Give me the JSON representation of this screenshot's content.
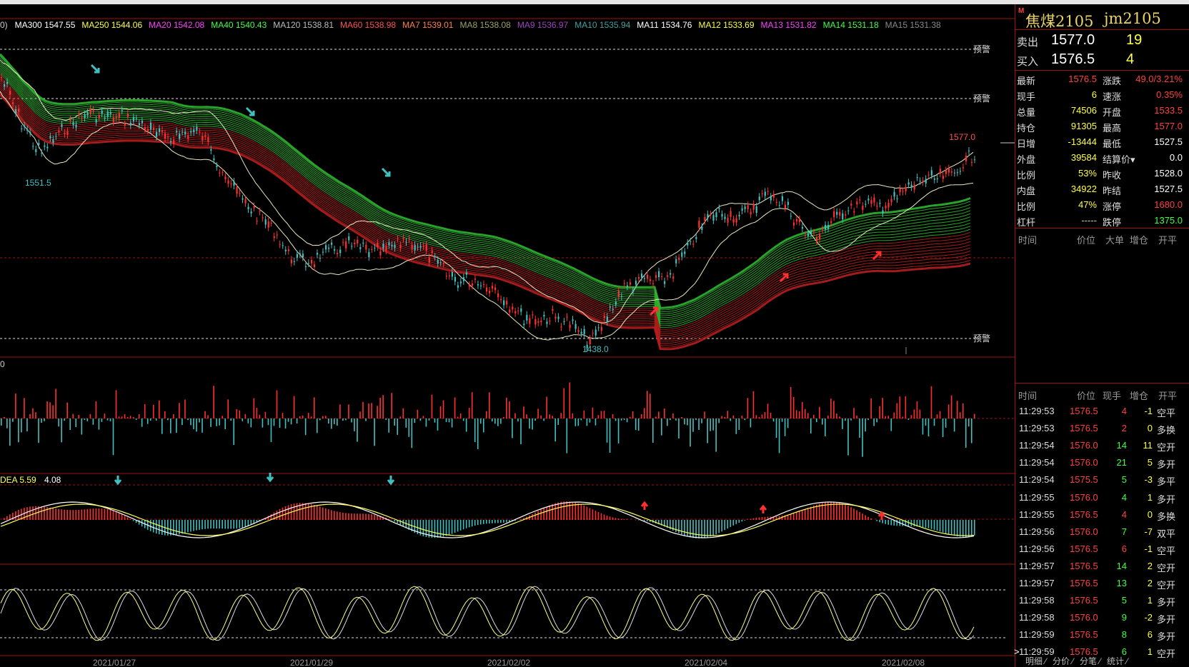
{
  "ma_legend": [
    {
      "label": "MA300 1547.55",
      "color": "#ffffff"
    },
    {
      "label": "MA250 1544.06",
      "color": "#ffff40"
    },
    {
      "label": "MA20 1542.08",
      "color": "#ff40ff"
    },
    {
      "label": "MA40 1540.43",
      "color": "#40ff40"
    },
    {
      "label": "MA120 1538.81",
      "color": "#bbbbbb"
    },
    {
      "label": "MA60 1538.98",
      "color": "#ff5050"
    },
    {
      "label": "MA7 1539.01",
      "color": "#ff8040"
    },
    {
      "label": "MA8 1538.08",
      "color": "#a0a060"
    },
    {
      "label": "MA9 1536.97",
      "color": "#a040c0"
    },
    {
      "label": "MA10 1535.94",
      "color": "#40a0a0"
    },
    {
      "label": "MA11 1534.76",
      "color": "#ffffff"
    },
    {
      "label": "MA12 1533.69",
      "color": "#ffff40"
    },
    {
      "label": "MA13 1531.82",
      "color": "#ff40ff"
    },
    {
      "label": "MA14 1531.18",
      "color": "#40ff40"
    },
    {
      "label": "MA15 1531.38",
      "color": "#888888"
    }
  ],
  "chart": {
    "legend_prefix": "0)",
    "warn_label": "预警",
    "high_label": "1577.0",
    "low_label": "1438.0",
    "left_label": "1551.5",
    "vol_axis_label": "0",
    "macd_label": "DEA 5.59",
    "macd_value": "4.08",
    "dates": [
      "2021/01/27",
      "2021/01/29",
      "2021/02/02",
      "2021/02/04",
      "2021/02/08"
    ]
  },
  "panel": {
    "name": "焦煤2105",
    "code": "jm2105",
    "m_badge": "M",
    "sell": {
      "label": "卖出",
      "price": "1577.0",
      "vol": "19"
    },
    "buy": {
      "label": "买入",
      "price": "1576.5",
      "vol": "4"
    },
    "stats_left": [
      {
        "label": "最新",
        "value": "1576.5",
        "color": "#ff4040"
      },
      {
        "label": "现手",
        "value": "6",
        "color": "#ffff40"
      },
      {
        "label": "总量",
        "value": "74506",
        "color": "#ffff40"
      },
      {
        "label": "持仓",
        "value": "91305",
        "color": "#ffff40"
      },
      {
        "label": "日增",
        "value": "-13444",
        "color": "#ffff40"
      },
      {
        "label": "外盘",
        "value": "39584",
        "color": "#ffff40"
      },
      {
        "label": "比例",
        "value": "53%",
        "color": "#ffff40"
      },
      {
        "label": "内盘",
        "value": "34922",
        "color": "#ffff40"
      },
      {
        "label": "比例",
        "value": "47%",
        "color": "#ffff40"
      },
      {
        "label": "杠杆",
        "value": "-----",
        "color": "#cccccc"
      }
    ],
    "stats_right": [
      {
        "label": "涨跌",
        "value": "49.0/3.21%",
        "color": "#ff4040"
      },
      {
        "label": "速涨",
        "value": "0.35%",
        "color": "#ff4040"
      },
      {
        "label": "开盘",
        "value": "1533.5",
        "color": "#ff4040"
      },
      {
        "label": "最高",
        "value": "1577.0",
        "color": "#ff4040"
      },
      {
        "label": "最低",
        "value": "1527.5",
        "color": "#ffffff"
      },
      {
        "label": "结算价▾",
        "value": "0.0",
        "color": "#ffffff"
      },
      {
        "label": "昨收",
        "value": "1528.0",
        "color": "#ffffff"
      },
      {
        "label": "昨结",
        "value": "1527.5",
        "color": "#ffffff"
      },
      {
        "label": "涨停",
        "value": "1680.0",
        "color": "#ff4040"
      },
      {
        "label": "跌停",
        "value": "1375.0",
        "color": "#40ff40"
      }
    ],
    "header1": [
      "时间",
      "价位",
      "大单",
      "增仓",
      "开平"
    ],
    "header2": [
      "时间",
      "价位",
      "现手",
      "增仓",
      "开平"
    ],
    "ticks": [
      {
        "time": "11:29:53",
        "price": "1576.5",
        "hand": "4",
        "chg": "-1",
        "type": "空平"
      },
      {
        "time": "11:29:53",
        "price": "1576.5",
        "hand": "2",
        "chg": "0",
        "type": "多换"
      },
      {
        "time": "11:29:54",
        "price": "1576.0",
        "hand": "14",
        "chg": "11",
        "type": "空开"
      },
      {
        "time": "11:29:54",
        "price": "1576.0",
        "hand": "21",
        "chg": "5",
        "type": "多开"
      },
      {
        "time": "11:29:54",
        "price": "1575.5",
        "hand": "5",
        "chg": "-3",
        "type": "多平"
      },
      {
        "time": "11:29:55",
        "price": "1576.0",
        "hand": "4",
        "chg": "1",
        "type": "多开"
      },
      {
        "time": "11:29:55",
        "price": "1576.5",
        "hand": "4",
        "chg": "0",
        "type": "多换"
      },
      {
        "time": "11:29:56",
        "price": "1576.0",
        "hand": "7",
        "chg": "-7",
        "type": "双平"
      },
      {
        "time": "11:29:56",
        "price": "1576.5",
        "hand": "6",
        "chg": "-1",
        "type": "空平"
      },
      {
        "time": "11:29:57",
        "price": "1576.5",
        "hand": "14",
        "chg": "2",
        "type": "空开"
      },
      {
        "time": "11:29:57",
        "price": "1576.5",
        "hand": "13",
        "chg": "2",
        "type": "空开"
      },
      {
        "time": "11:29:58",
        "price": "1576.5",
        "hand": "5",
        "chg": "1",
        "type": "多开"
      },
      {
        "time": "11:29:58",
        "price": "1576.0",
        "hand": "9",
        "chg": "-2",
        "type": "多开"
      },
      {
        "time": "11:29:59",
        "price": "1576.5",
        "hand": "8",
        "chg": "6",
        "type": "多开"
      },
      {
        "time": "11:29:59",
        "price": "1576.5",
        "hand": "6",
        "chg": "1",
        "type": "空开"
      }
    ],
    "last_tick_marker": ">",
    "tabs": [
      "明细",
      "分价",
      "分笔",
      "统计"
    ]
  },
  "colors": {
    "up": "#ff3030",
    "down": "#40c0c0",
    "grid": "#a01010"
  }
}
